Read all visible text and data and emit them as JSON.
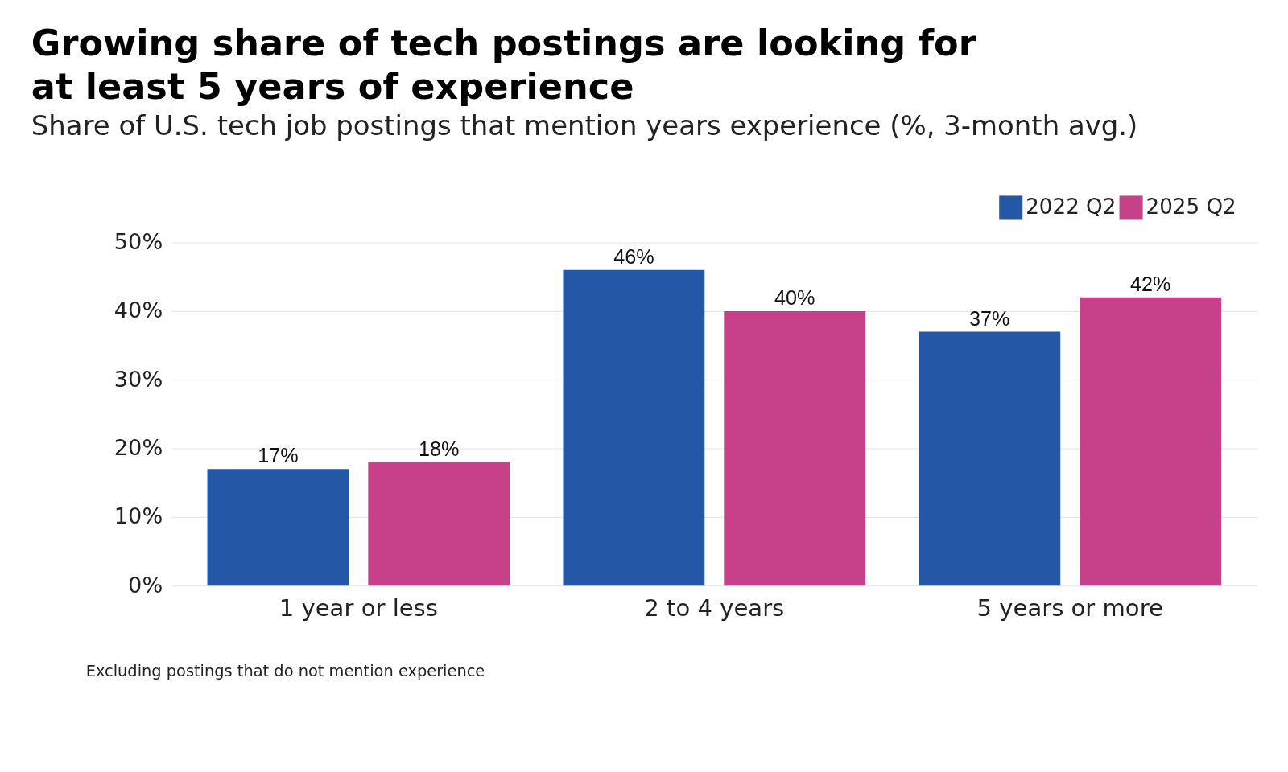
{
  "chart_data": {
    "type": "bar",
    "title": "Growing share of tech postings are looking for\nat least 5 years of experience",
    "subtitle": "Share of U.S. tech job postings that mention years experience (%, 3-month avg.)",
    "categories": [
      "1 year or less",
      "2 to 4 years",
      "5 years or more"
    ],
    "series": [
      {
        "name": "2022 Q2",
        "color": "#2457a5",
        "values": [
          17,
          46,
          37
        ],
        "value_labels": [
          "17%",
          "46%",
          "37%"
        ]
      },
      {
        "name": "2025 Q2",
        "color": "#c7418a",
        "values": [
          18,
          40,
          42
        ],
        "value_labels": [
          "18%",
          "40%",
          "42%"
        ]
      }
    ],
    "ylim": [
      0,
      50
    ],
    "yticks": [
      {
        "value": 0,
        "label": "0%"
      },
      {
        "value": 10,
        "label": "10%"
      },
      {
        "value": 20,
        "label": "20%"
      },
      {
        "value": 30,
        "label": "30%"
      },
      {
        "value": 40,
        "label": "40%"
      },
      {
        "value": 50,
        "label": "50%"
      }
    ],
    "grid": "y",
    "legend": "top right",
    "annotations": [
      "Excluding postings that do not mention experience"
    ]
  }
}
